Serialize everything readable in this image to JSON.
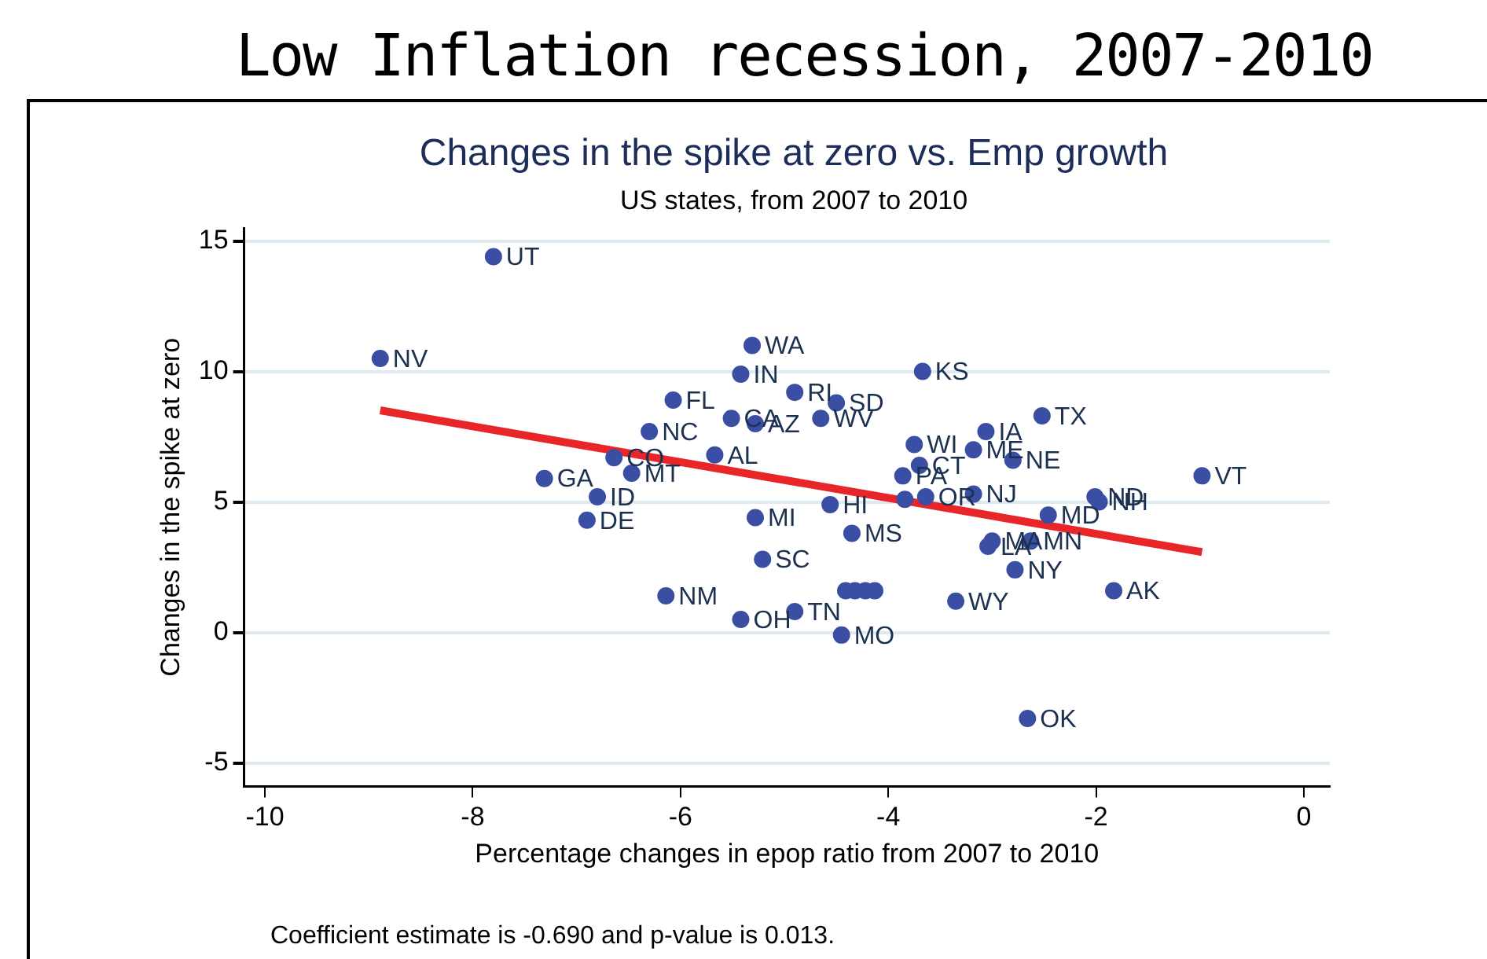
{
  "chart_data": {
    "type": "scatter",
    "title": "Low Inflation recession, 2007-2010",
    "subtitle": "Changes in the spike at zero vs. Emp growth",
    "annotations": [
      "US states, from 2007 to 2010",
      "Coefficient estimate is -0.690 and p-value is 0.013."
    ],
    "xlabel": "Percentage changes in epop ratio from 2007 to 2010",
    "ylabel": "Changes in the spike at zero",
    "xlim": [
      -10.2,
      0.25
    ],
    "ylim": [
      -5.9,
      15.5
    ],
    "xticks": [
      -10,
      -8,
      -6,
      -4,
      -2,
      0
    ],
    "yticks": [
      -5,
      0,
      5,
      10,
      15
    ],
    "grid": "y",
    "legend": false,
    "marker": "circle",
    "series": [
      {
        "color": "#3a4ea3",
        "x": [
          -7.8,
          -8.89,
          -5.31,
          -5.42,
          -4.9,
          -4.5,
          -4.65,
          -6.07,
          -5.51,
          -5.28,
          -6.3,
          -5.67,
          -6.64,
          -6.47,
          -7.31,
          -6.8,
          -6.9,
          -5.28,
          -4.56,
          -4.35,
          -5.21,
          -6.14,
          -5.42,
          -4.9,
          -4.45,
          -4.41,
          -4.32,
          -4.22,
          -4.13,
          -3.35,
          -3.67,
          -2.52,
          -3.06,
          -3.75,
          -3.18,
          -2.8,
          -3.7,
          -3.86,
          -3.84,
          -3.64,
          -3.18,
          -2.01,
          -1.97,
          -2.46,
          -0.98,
          -3.0,
          -3.04,
          -2.63,
          -2.78,
          -1.83,
          -2.66
        ],
        "values": [
          14.4,
          10.5,
          11.0,
          9.9,
          9.2,
          8.8,
          8.2,
          8.9,
          8.2,
          8.0,
          7.7,
          6.8,
          6.7,
          6.1,
          5.9,
          5.2,
          4.3,
          4.4,
          4.9,
          3.8,
          2.8,
          1.4,
          0.5,
          0.8,
          -0.1,
          1.6,
          1.6,
          1.6,
          1.6,
          1.2,
          10.0,
          8.3,
          7.7,
          7.2,
          7.0,
          6.6,
          6.4,
          6.0,
          5.1,
          5.2,
          5.3,
          5.2,
          5.0,
          4.5,
          6.0,
          3.5,
          3.3,
          3.5,
          2.4,
          1.6,
          -3.3
        ],
        "value_labels": [
          "UT",
          "NV",
          "WA",
          "IN",
          "RI",
          "SD",
          "WV",
          "FL",
          "CA",
          "AZ",
          "NC",
          "AL",
          "CO",
          "MT",
          "GA",
          "ID",
          "DE",
          "MI",
          "HI",
          "MS",
          "SC",
          "NM",
          "OH",
          "TN",
          "MO",
          null,
          null,
          null,
          null,
          "WY",
          "KS",
          "TX",
          "IA",
          "WI",
          "ME",
          "NE",
          "CT",
          "PA",
          null,
          "OR",
          "NJ",
          "ND",
          "NH",
          "MD",
          "VT",
          "MA",
          "LA",
          "MN",
          "NY",
          "AK",
          "OK"
        ]
      },
      {
        "type": "line",
        "marker": "none",
        "color": "#e8262a",
        "x": [
          -8.89,
          -0.98
        ],
        "values": [
          8.51,
          3.08
        ]
      }
    ]
  }
}
